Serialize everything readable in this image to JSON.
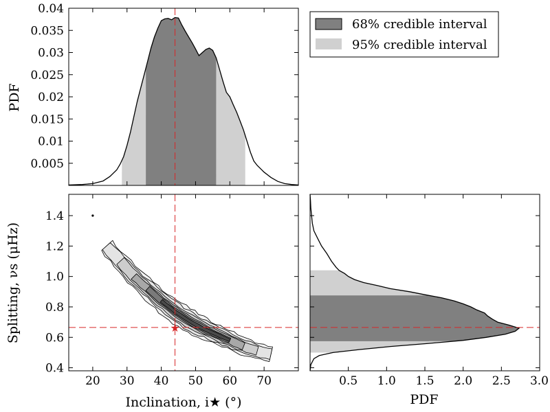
{
  "colors": {
    "ci68": "#808080",
    "ci95": "#d0d0d0",
    "marker": "#d62728",
    "line": "#000000"
  },
  "legend": {
    "ci68": "68% credible interval",
    "ci95": "95% credible interval",
    "placement": "top-right"
  },
  "chart_data": [
    {
      "type": "area",
      "panel": "inclination-marginal",
      "xlabel": "",
      "ylabel": "PDF",
      "xlim": [
        13,
        80
      ],
      "ylim": [
        0,
        0.04
      ],
      "yticks": [
        0.005,
        0.01,
        0.015,
        0.02,
        0.025,
        0.03,
        0.035,
        0.04
      ],
      "ytick_labels": [
        "0.005",
        "0.01",
        "0.015",
        "0.02",
        "0.025",
        "0.03",
        "0.035",
        "0.04"
      ],
      "x": [
        13,
        17,
        20,
        23,
        25,
        27,
        28,
        29,
        30,
        31,
        32,
        33,
        34,
        35,
        36,
        37,
        38,
        39,
        40,
        41,
        42,
        43,
        44,
        45,
        46,
        47,
        48,
        49,
        50,
        51,
        52,
        53,
        54,
        55,
        56,
        57,
        58,
        59,
        60,
        61,
        62,
        63,
        64,
        65,
        66,
        67,
        68,
        70,
        72,
        74,
        76,
        78,
        80
      ],
      "pdf": [
        0.0001,
        0.0002,
        0.0004,
        0.001,
        0.002,
        0.0035,
        0.0048,
        0.0065,
        0.009,
        0.012,
        0.0155,
        0.019,
        0.022,
        0.025,
        0.028,
        0.031,
        0.0335,
        0.0355,
        0.0372,
        0.0376,
        0.0377,
        0.0374,
        0.0379,
        0.0378,
        0.0362,
        0.0348,
        0.0335,
        0.0322,
        0.0308,
        0.0293,
        0.03,
        0.0307,
        0.031,
        0.0305,
        0.0288,
        0.0262,
        0.0235,
        0.021,
        0.02,
        0.0182,
        0.0165,
        0.0145,
        0.0125,
        0.01,
        0.0075,
        0.0055,
        0.0045,
        0.003,
        0.0018,
        0.0009,
        0.0004,
        0.0002,
        0.0001
      ],
      "median": 44,
      "ci68": [
        35.5,
        56
      ],
      "ci95": [
        28.5,
        64.5
      ]
    },
    {
      "type": "scatter",
      "panel": "joint-contour",
      "xlabel": "Inclination, i★ (°)",
      "ylabel": "Splitting, νs (μHz)",
      "xlim": [
        13,
        80
      ],
      "ylim": [
        0.38,
        1.54
      ],
      "xticks": [
        20,
        30,
        40,
        50,
        60,
        70
      ],
      "xtick_labels": [
        "20",
        "30",
        "40",
        "50",
        "60",
        "70"
      ],
      "yticks": [
        0.4,
        0.6,
        0.8,
        1.0,
        1.2,
        1.4
      ],
      "ytick_labels": [
        "0.4",
        "0.6",
        "0.8",
        "1.0",
        "1.2",
        "1.4"
      ],
      "ridge_x": [
        24,
        28,
        32,
        36,
        40,
        44,
        48,
        52,
        56,
        60,
        64,
        68,
        72
      ],
      "ridge_y": [
        1.2,
        1.1,
        1.0,
        0.92,
        0.84,
        0.77,
        0.71,
        0.66,
        0.62,
        0.58,
        0.54,
        0.51,
        0.49
      ],
      "outlier": [
        20,
        1.4
      ],
      "best_fit": [
        44,
        0.665
      ]
    },
    {
      "type": "area",
      "panel": "splitting-marginal",
      "xlabel": "PDF",
      "ylabel": "",
      "xlim": [
        0,
        3.0
      ],
      "ylim": [
        0.38,
        1.54
      ],
      "xticks": [
        0.5,
        1.0,
        1.5,
        2.0,
        2.5,
        3.0
      ],
      "xtick_labels": [
        "0.5",
        "1.0",
        "1.5",
        "2.0",
        "2.5",
        "3.0"
      ],
      "y": [
        0.38,
        0.42,
        0.46,
        0.48,
        0.5,
        0.52,
        0.54,
        0.56,
        0.58,
        0.6,
        0.62,
        0.64,
        0.66,
        0.68,
        0.7,
        0.72,
        0.74,
        0.76,
        0.78,
        0.8,
        0.82,
        0.84,
        0.86,
        0.88,
        0.9,
        0.92,
        0.94,
        0.96,
        0.98,
        1.0,
        1.02,
        1.04,
        1.06,
        1.1,
        1.15,
        1.2,
        1.25,
        1.3,
        1.35,
        1.4,
        1.45,
        1.5,
        1.54
      ],
      "pdf": [
        0.0,
        0.01,
        0.05,
        0.12,
        0.3,
        0.65,
        1.05,
        1.55,
        2.0,
        2.3,
        2.55,
        2.68,
        2.73,
        2.6,
        2.45,
        2.38,
        2.32,
        2.28,
        2.18,
        2.1,
        2.0,
        1.88,
        1.72,
        1.5,
        1.3,
        1.05,
        0.88,
        0.7,
        0.58,
        0.5,
        0.45,
        0.38,
        0.34,
        0.28,
        0.22,
        0.15,
        0.1,
        0.05,
        0.03,
        0.02,
        0.01,
        0.005,
        0.0
      ],
      "median": 0.665,
      "ci68": [
        0.575,
        0.875
      ],
      "ci95": [
        0.5,
        1.04
      ]
    }
  ]
}
